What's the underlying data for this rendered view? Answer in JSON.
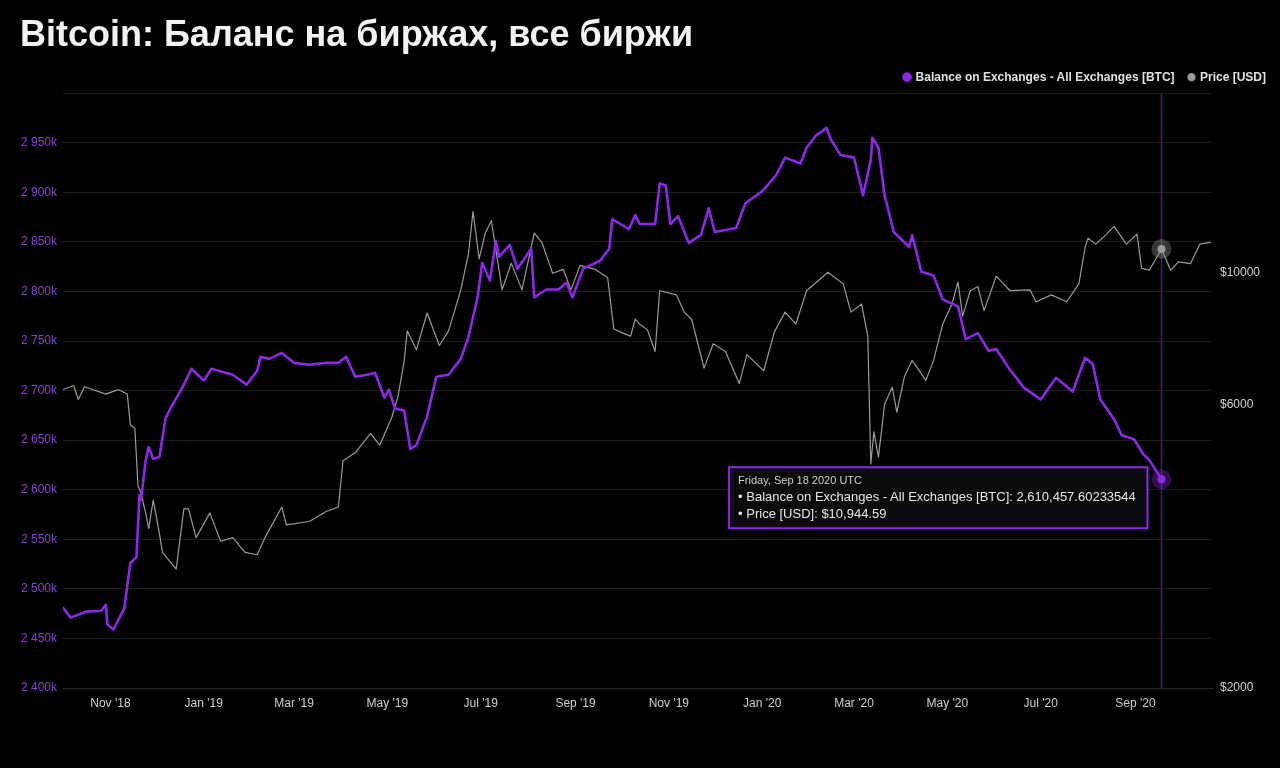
{
  "chart_data": {
    "type": "line",
    "title": "Bitcoin: Баланс на биржах, все биржи",
    "xlim": [
      "2018-10-01",
      "2020-10-21"
    ],
    "xticks": [
      {
        "value": "2018-11-01",
        "label": "Nov '18"
      },
      {
        "value": "2019-01-01",
        "label": "Jan '19"
      },
      {
        "value": "2019-03-01",
        "label": "Mar '19"
      },
      {
        "value": "2019-05-01",
        "label": "May '19"
      },
      {
        "value": "2019-07-01",
        "label": "Jul '19"
      },
      {
        "value": "2019-09-01",
        "label": "Sep '19"
      },
      {
        "value": "2019-11-01",
        "label": "Nov '19"
      },
      {
        "value": "2020-01-01",
        "label": "Jan '20"
      },
      {
        "value": "2020-03-01",
        "label": "Mar '20"
      },
      {
        "value": "2020-05-01",
        "label": "May '20"
      },
      {
        "value": "2020-07-01",
        "label": "Jul '20"
      },
      {
        "value": "2020-09-01",
        "label": "Sep '20"
      }
    ],
    "ylim": [
      2400000,
      3000000
    ],
    "yticks": [
      {
        "value": 2400000,
        "label": "2 400k"
      },
      {
        "value": 2450000,
        "label": "2 450k"
      },
      {
        "value": 2500000,
        "label": "2 500k"
      },
      {
        "value": 2550000,
        "label": "2 550k"
      },
      {
        "value": 2600000,
        "label": "2 600k"
      },
      {
        "value": 2650000,
        "label": "2 650k"
      },
      {
        "value": 2700000,
        "label": "2 700k"
      },
      {
        "value": 2750000,
        "label": "2 750k"
      },
      {
        "value": 2800000,
        "label": "2 800k"
      },
      {
        "value": 2850000,
        "label": "2 850k"
      },
      {
        "value": 2900000,
        "label": "2 900k"
      },
      {
        "value": 2950000,
        "label": "2 950k"
      },
      {
        "value": 3000000,
        "label": null
      }
    ],
    "y2lim": [
      2000,
      20000
    ],
    "y2ticks": [
      {
        "value": 2000,
        "label": "$2000"
      },
      {
        "value": 6000,
        "label": "$6000"
      },
      {
        "value": 10000,
        "label": "$10000"
      }
    ],
    "log": "y2",
    "grid": "y",
    "legend": "top right",
    "marker": "none",
    "line_style": "solid",
    "ref_lines": [
      {
        "axis": "x",
        "value": "2020-09-18",
        "color": "#3c2a52"
      }
    ],
    "annotations": [
      "Friday, Sep 18 2020 UTC",
      "• Balance on Exchanges - All Exchanges [BTC]: 2,610,457.60233544",
      "• Price [USD]: $10,944.59"
    ],
    "series": [
      {
        "name": "Balance on Exchanges - All Exchanges [BTC]",
        "color": "#8a2be2",
        "x": [
          "2018-10-01",
          "2018-10-06",
          "2018-10-16",
          "2018-10-26",
          "2018-10-29",
          "2018-10-30",
          "2018-11-03",
          "2018-11-10",
          "2018-11-14",
          "2018-11-18",
          "2018-11-20",
          "2018-11-21",
          "2018-11-24",
          "2018-11-26",
          "2018-11-29",
          "2018-12-03",
          "2018-12-07",
          "2018-12-11",
          "2018-12-18",
          "2018-12-24",
          "2019-01-01",
          "2019-01-06",
          "2019-01-20",
          "2019-01-29",
          "2019-02-05",
          "2019-02-07",
          "2019-02-13",
          "2019-02-21",
          "2019-03-01",
          "2019-03-11",
          "2019-03-22",
          "2019-03-30",
          "2019-04-04",
          "2019-04-10",
          "2019-04-18",
          "2019-04-23",
          "2019-04-29",
          "2019-05-02",
          "2019-05-06",
          "2019-05-12",
          "2019-05-16",
          "2019-05-20",
          "2019-05-27",
          "2019-06-02",
          "2019-06-10",
          "2019-06-18",
          "2019-06-23",
          "2019-06-29",
          "2019-07-02",
          "2019-07-07",
          "2019-07-11",
          "2019-07-13",
          "2019-07-20",
          "2019-07-25",
          "2019-08-03",
          "2019-08-05",
          "2019-08-13",
          "2019-08-21",
          "2019-08-26",
          "2019-08-30",
          "2019-09-06",
          "2019-09-17",
          "2019-09-23",
          "2019-09-25",
          "2019-10-06",
          "2019-10-10",
          "2019-10-13",
          "2019-10-23",
          "2019-10-26",
          "2019-10-30",
          "2019-11-02",
          "2019-11-07",
          "2019-11-14",
          "2019-11-22",
          "2019-11-27",
          "2019-12-01",
          "2019-12-15",
          "2019-12-21",
          "2020-01-01",
          "2020-01-10",
          "2020-01-16",
          "2020-01-26",
          "2020-01-30",
          "2020-02-05",
          "2020-02-12",
          "2020-02-15",
          "2020-02-21",
          "2020-03-01",
          "2020-03-07",
          "2020-03-12",
          "2020-03-13",
          "2020-03-17",
          "2020-03-21",
          "2020-03-27",
          "2020-04-06",
          "2020-04-08",
          "2020-04-14",
          "2020-04-22",
          "2020-04-28",
          "2020-05-08",
          "2020-05-13",
          "2020-05-21",
          "2020-05-28",
          "2020-06-02",
          "2020-06-10",
          "2020-06-20",
          "2020-07-01",
          "2020-07-11",
          "2020-07-22",
          "2020-07-30",
          "2020-08-04",
          "2020-08-09",
          "2020-08-18",
          "2020-08-23",
          "2020-08-31",
          "2020-09-06",
          "2020-09-10",
          "2020-09-18"
        ],
        "values": [
          2481000,
          2471000,
          2477000,
          2478000,
          2484000,
          2464000,
          2459000,
          2480000,
          2526000,
          2532000,
          2595000,
          2590000,
          2629000,
          2643000,
          2631000,
          2633000,
          2672000,
          2684000,
          2703000,
          2722000,
          2710000,
          2722000,
          2716000,
          2706000,
          2720000,
          2734000,
          2732000,
          2738000,
          2728000,
          2726000,
          2728000,
          2728000,
          2734000,
          2714000,
          2716000,
          2718000,
          2693000,
          2701000,
          2682000,
          2680000,
          2641000,
          2645000,
          2674000,
          2714000,
          2716000,
          2732000,
          2754000,
          2794000,
          2829000,
          2811000,
          2851000,
          2835000,
          2847000,
          2823000,
          2843000,
          2794000,
          2802000,
          2802000,
          2809000,
          2794000,
          2823000,
          2831000,
          2843000,
          2873000,
          2863000,
          2877000,
          2868000,
          2868000,
          2909000,
          2907000,
          2868000,
          2876000,
          2849000,
          2857000,
          2884000,
          2860000,
          2864000,
          2889000,
          2901000,
          2917000,
          2935000,
          2929000,
          2945000,
          2957000,
          2965000,
          2953000,
          2938000,
          2935000,
          2897000,
          2933000,
          2955000,
          2945000,
          2897000,
          2860000,
          2845000,
          2857000,
          2820000,
          2816000,
          2792000,
          2785000,
          2752000,
          2758000,
          2740000,
          2742000,
          2723000,
          2703000,
          2691000,
          2713000,
          2699000,
          2733000,
          2727000,
          2691000,
          2671000,
          2655000,
          2651000,
          2636000,
          2630000,
          2610457.60233544
        ]
      },
      {
        "name": "Price [USD]",
        "color": "#9a9a9a",
        "axis": "y2",
        "x": [
          "2018-10-01",
          "2018-10-08",
          "2018-10-11",
          "2018-10-15",
          "2018-10-29",
          "2018-11-06",
          "2018-11-12",
          "2018-11-14",
          "2018-11-17",
          "2018-11-19",
          "2018-11-21",
          "2018-11-24",
          "2018-11-26",
          "2018-11-29",
          "2018-12-03",
          "2018-12-05",
          "2018-12-14",
          "2018-12-19",
          "2018-12-22",
          "2018-12-27",
          "2019-01-05",
          "2019-01-12",
          "2019-01-20",
          "2019-01-28",
          "2019-02-05",
          "2019-02-10",
          "2019-02-21",
          "2019-02-24",
          "2019-03-11",
          "2019-03-22",
          "2019-03-30",
          "2019-04-02",
          "2019-04-10",
          "2019-04-20",
          "2019-04-26",
          "2019-05-04",
          "2019-05-08",
          "2019-05-12",
          "2019-05-14",
          "2019-05-20",
          "2019-05-27",
          "2019-06-04",
          "2019-06-10",
          "2019-06-18",
          "2019-06-23",
          "2019-06-26",
          "2019-06-30",
          "2019-07-04",
          "2019-07-08",
          "2019-07-15",
          "2019-07-21",
          "2019-07-28",
          "2019-08-05",
          "2019-08-10",
          "2019-08-17",
          "2019-08-24",
          "2019-08-29",
          "2019-09-04",
          "2019-09-14",
          "2019-09-22",
          "2019-09-26",
          "2019-10-02",
          "2019-10-07",
          "2019-10-10",
          "2019-10-13",
          "2019-10-18",
          "2019-10-23",
          "2019-10-26",
          "2019-11-06",
          "2019-11-11",
          "2019-11-16",
          "2019-11-24",
          "2019-11-30",
          "2019-12-08",
          "2019-12-17",
          "2019-12-22",
          "2020-01-02",
          "2020-01-09",
          "2020-01-16",
          "2020-01-23",
          "2020-01-30",
          "2020-02-13",
          "2020-02-23",
          "2020-02-28",
          "2020-03-06",
          "2020-03-10",
          "2020-03-12",
          "2020-03-14",
          "2020-03-17",
          "2020-03-21",
          "2020-03-26",
          "2020-03-29",
          "2020-04-03",
          "2020-04-08",
          "2020-04-17",
          "2020-04-22",
          "2020-04-28",
          "2020-05-04",
          "2020-05-08",
          "2020-05-11",
          "2020-05-16",
          "2020-05-21",
          "2020-05-25",
          "2020-06-02",
          "2020-06-11",
          "2020-06-24",
          "2020-06-28",
          "2020-07-08",
          "2020-07-18",
          "2020-07-26",
          "2020-07-30",
          "2020-08-01",
          "2020-08-06",
          "2020-08-13",
          "2020-08-18",
          "2020-08-26",
          "2020-09-02",
          "2020-09-05",
          "2020-09-10",
          "2020-09-18",
          "2020-09-24",
          "2020-09-29",
          "2020-10-07",
          "2020-10-13",
          "2020-10-20"
        ],
        "values": [
          6350,
          6450,
          6110,
          6420,
          6240,
          6350,
          6240,
          5540,
          5460,
          4380,
          4250,
          3940,
          3710,
          4140,
          3640,
          3380,
          3170,
          4000,
          4000,
          3580,
          3940,
          3530,
          3580,
          3380,
          3350,
          3580,
          4030,
          3760,
          3810,
          3960,
          4030,
          4820,
          4970,
          5360,
          5120,
          5710,
          6190,
          7080,
          7970,
          7410,
          8540,
          7530,
          7970,
          9340,
          10740,
          12650,
          10530,
          11640,
          12200,
          9340,
          10360,
          9340,
          11640,
          11230,
          9960,
          10110,
          9340,
          10270,
          10110,
          9790,
          8030,
          7900,
          7810,
          8340,
          8180,
          8000,
          7360,
          9310,
          9160,
          8570,
          8320,
          6900,
          7580,
          7360,
          6500,
          7270,
          6830,
          7940,
          8570,
          8180,
          9310,
          10000,
          9560,
          8570,
          8840,
          7810,
          4760,
          5390,
          4890,
          6000,
          6410,
          5820,
          6680,
          7110,
          6580,
          7110,
          8180,
          8840,
          9630,
          8440,
          9310,
          9460,
          8620,
          9850,
          9310,
          9340,
          8920,
          9160,
          8920,
          9560,
          10990,
          11410,
          11150,
          11580,
          11940,
          11150,
          11590,
          10150,
          10080,
          10944.59,
          10080,
          10410,
          10340,
          11150,
          11230
        ]
      }
    ]
  }
}
